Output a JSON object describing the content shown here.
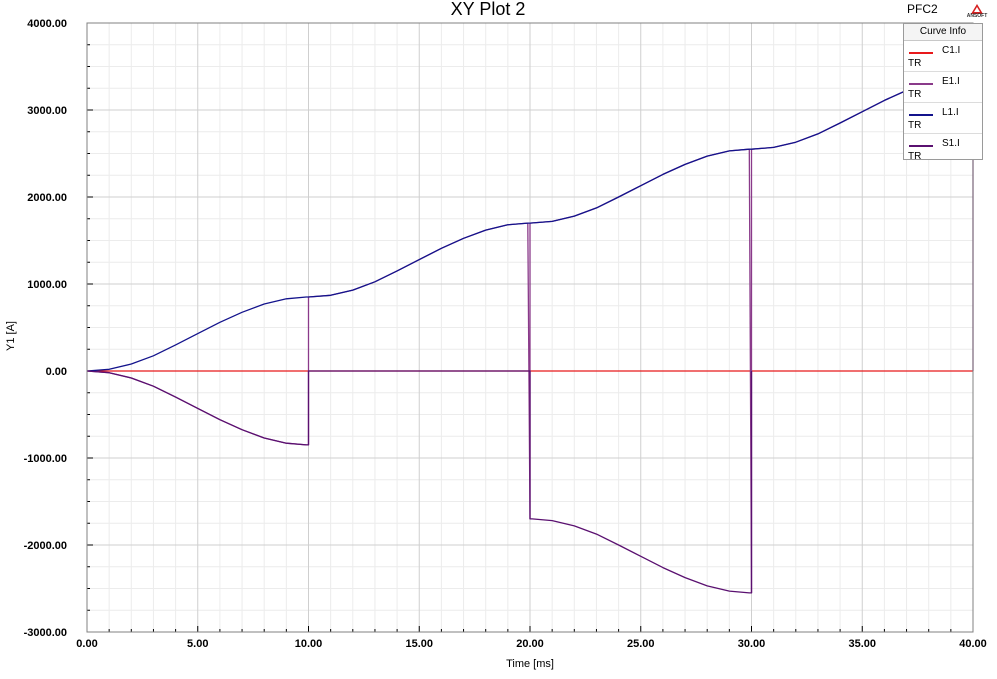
{
  "header": {
    "brand_label": "PFC2",
    "logo_text": "ANSOFT"
  },
  "legend": {
    "title": "Curve Info",
    "entries": [
      {
        "name": "C1.I",
        "sub": "TR",
        "color": "#e8191b"
      },
      {
        "name": "E1.I",
        "sub": "TR",
        "color": "#8a3a8a"
      },
      {
        "name": "L1.I",
        "sub": "TR",
        "color": "#13138c"
      },
      {
        "name": "S1.I",
        "sub": "TR",
        "color": "#5a1070"
      }
    ]
  },
  "chart_data": {
    "type": "line",
    "title": "XY Plot 2",
    "xlabel": "Time [ms]",
    "ylabel": "Y1 [A]",
    "xlim": [
      0,
      40
    ],
    "ylim": [
      -3000,
      4000
    ],
    "xticks": [
      0,
      5,
      10,
      15,
      20,
      25,
      30,
      35,
      40
    ],
    "xtick_labels": [
      "0.00",
      "5.00",
      "10.00",
      "15.00",
      "20.00",
      "25.00",
      "30.00",
      "35.00",
      "40.00"
    ],
    "yticks": [
      -3000,
      -2000,
      -1000,
      0,
      1000,
      2000,
      3000,
      4000
    ],
    "ytick_labels": [
      "-3000.00",
      "-2000.00",
      "-1000.00",
      "0.00",
      "1000.00",
      "2000.00",
      "3000.00",
      "4000.00"
    ],
    "grid": true,
    "legend_position": "top-right",
    "series": [
      {
        "name": "C1.I",
        "color": "#e8191b",
        "x": [
          0,
          40
        ],
        "y": [
          0,
          0
        ]
      },
      {
        "name": "E1.I",
        "color": "#8a3a8a",
        "x": [
          0,
          1,
          2,
          3,
          4,
          5,
          6,
          7,
          8,
          9,
          9.9,
          10,
          10,
          11,
          12,
          13,
          14,
          15,
          16,
          17,
          18,
          19,
          19.9,
          20,
          20,
          21,
          22,
          23,
          24,
          25,
          26,
          27,
          28,
          29,
          29.9,
          30,
          30,
          31,
          32,
          33,
          34,
          35,
          36,
          37,
          38,
          39,
          40,
          40
        ],
        "y": [
          0,
          -20,
          -80,
          -175,
          -300,
          -430,
          -560,
          -675,
          -770,
          -830,
          -850,
          -850,
          850,
          870,
          930,
          1025,
          1150,
          1280,
          1410,
          1525,
          1620,
          1680,
          1700,
          -1700,
          1700,
          1720,
          1780,
          1875,
          2000,
          2130,
          2260,
          2375,
          2470,
          2530,
          2550,
          -2550,
          2550,
          2570,
          2630,
          2725,
          2850,
          2980,
          3110,
          3225,
          3320,
          3380,
          3400,
          0
        ]
      },
      {
        "name": "L1.I",
        "color": "#13138c",
        "x": [
          0,
          1,
          2,
          3,
          4,
          5,
          6,
          7,
          8,
          9,
          9.9,
          10,
          10,
          11,
          12,
          13,
          14,
          15,
          16,
          17,
          18,
          19,
          19.9,
          20,
          20,
          21,
          22,
          23,
          24,
          25,
          26,
          27,
          28,
          29,
          29.9,
          30,
          30,
          31,
          32,
          33,
          34,
          35,
          36,
          37,
          38,
          39,
          40
        ],
        "y": [
          0,
          20,
          80,
          175,
          300,
          430,
          560,
          675,
          770,
          830,
          850,
          850,
          850,
          870,
          930,
          1025,
          1150,
          1280,
          1410,
          1525,
          1620,
          1680,
          1700,
          1700,
          1700,
          1720,
          1780,
          1875,
          2000,
          2130,
          2260,
          2375,
          2470,
          2530,
          2550,
          2550,
          2550,
          2570,
          2630,
          2725,
          2850,
          2980,
          3110,
          3225,
          3320,
          3380,
          3400
        ]
      },
      {
        "name": "S1.I",
        "color": "#5a1070",
        "x": [
          0,
          1,
          2,
          3,
          4,
          5,
          6,
          7,
          8,
          9,
          9.9,
          10,
          10,
          10.1,
          20,
          20,
          20.1,
          21,
          22,
          23,
          24,
          25,
          26,
          27,
          28,
          29,
          29.9,
          30,
          30
        ],
        "y": [
          0,
          -20,
          -80,
          -175,
          -300,
          -430,
          -560,
          -675,
          -770,
          -830,
          -850,
          -850,
          0,
          0,
          0,
          -1700,
          -1700,
          -1720,
          -1780,
          -1875,
          -2000,
          -2130,
          -2260,
          -2375,
          -2470,
          -2530,
          -2550,
          -2550,
          0
        ]
      }
    ]
  }
}
